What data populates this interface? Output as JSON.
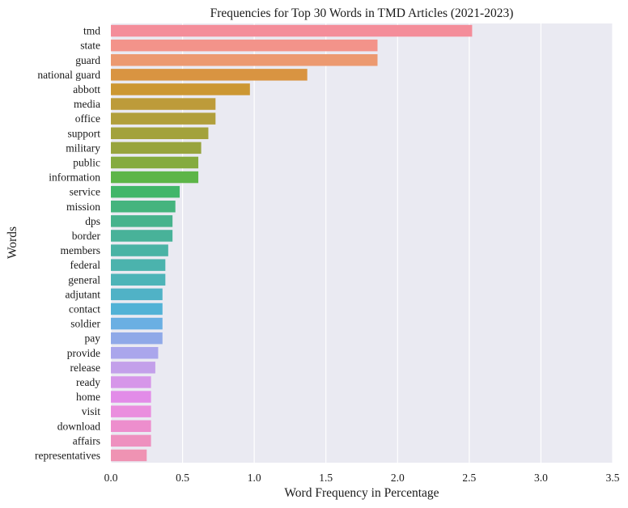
{
  "chart_data": {
    "type": "bar",
    "orientation": "horizontal",
    "title": "Frequencies for Top 30 Words in TMD Articles (2021-2023)",
    "xlabel": "Word Frequency in Percentage",
    "ylabel": "Words",
    "xlim": [
      0,
      3.5
    ],
    "xticks": [
      "0.0",
      "0.5",
      "1.0",
      "1.5",
      "2.0",
      "2.5",
      "3.0",
      "3.5"
    ],
    "grid": true,
    "background": "#eaeaf2",
    "categories": [
      "tmd",
      "state",
      "guard",
      "national guard",
      "abbott",
      "media",
      "office",
      "support",
      "military",
      "public",
      "information",
      "service",
      "mission",
      "dps",
      "border",
      "members",
      "federal",
      "general",
      "adjutant",
      "contact",
      "soldier",
      "pay",
      "provide",
      "release",
      "ready",
      "home",
      "visit",
      "download",
      "affairs",
      "representatives"
    ],
    "values": [
      2.52,
      1.86,
      1.86,
      1.37,
      0.97,
      0.73,
      0.73,
      0.68,
      0.63,
      0.61,
      0.61,
      0.48,
      0.45,
      0.43,
      0.43,
      0.4,
      0.38,
      0.38,
      0.36,
      0.36,
      0.36,
      0.36,
      0.33,
      0.31,
      0.28,
      0.28,
      0.28,
      0.28,
      0.28,
      0.25
    ],
    "colors": [
      "#f48d9a",
      "#f3938a",
      "#ec9970",
      "#d99441",
      "#cc9733",
      "#bd9b3a",
      "#b19f3c",
      "#a3a23c",
      "#98a43e",
      "#85ab3f",
      "#5db548",
      "#41b66a",
      "#45b47e",
      "#47b38d",
      "#48b299",
      "#4ab3a5",
      "#4bb3ad",
      "#4db4b8",
      "#50b2c6",
      "#52b2d6",
      "#6aafe3",
      "#8fa9e8",
      "#aaa6ec",
      "#c3a0ea",
      "#d696e9",
      "#e28ce8",
      "#ea8ede",
      "#ed8ecd",
      "#ee90bf",
      "#ef93b3"
    ]
  }
}
